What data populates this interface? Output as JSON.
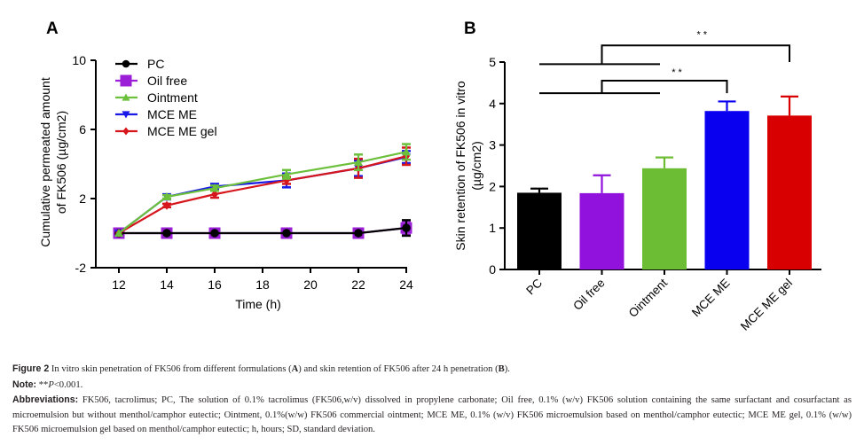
{
  "chart_data": [
    {
      "panel": "A",
      "type": "line",
      "title": "",
      "xlabel": "Time (h)",
      "ylabel_line1": "Cumulative permeated amount",
      "ylabel_line2": "of FK506 (µg/cm2)",
      "xlim": [
        12,
        24
      ],
      "ylim": [
        -2,
        10
      ],
      "xticks": [
        12,
        14,
        16,
        18,
        20,
        22,
        24
      ],
      "yticks": [
        -2,
        2,
        6,
        10
      ],
      "grid": false,
      "legend_position": "top-left",
      "x": [
        12,
        14,
        16,
        19,
        22,
        24
      ],
      "series": [
        {
          "name": "PC",
          "color": "#000000",
          "marker": "circle",
          "values": [
            0,
            0,
            0,
            0,
            0,
            0.3
          ],
          "err": [
            0,
            0,
            0,
            0,
            0,
            0.45
          ]
        },
        {
          "name": "Oil free",
          "color": "#9b1fd6",
          "marker": "square",
          "values": [
            0,
            0,
            0,
            0,
            0,
            0.3
          ],
          "err": [
            0,
            0,
            0,
            0,
            0,
            0.4
          ]
        },
        {
          "name": "Ointment",
          "color": "#6cc03c",
          "marker": "triangle-up",
          "values": [
            0,
            2.1,
            2.6,
            3.4,
            4.1,
            4.7
          ],
          "err": [
            0,
            0.1,
            0.15,
            0.25,
            0.45,
            0.45
          ]
        },
        {
          "name": "MCE ME",
          "color": "#1a1ae6",
          "marker": "triangle-down",
          "values": [
            0,
            2.1,
            2.7,
            3.05,
            3.75,
            4.4
          ],
          "err": [
            0,
            0.15,
            0.15,
            0.4,
            0.45,
            0.35
          ]
        },
        {
          "name": "MCE ME gel",
          "color": "#d6161c",
          "marker": "diamond",
          "values": [
            0,
            1.6,
            2.25,
            3.05,
            3.75,
            4.45
          ],
          "err": [
            0,
            0.1,
            0.2,
            0.2,
            0.55,
            0.5
          ]
        }
      ]
    },
    {
      "panel": "B",
      "type": "bar",
      "title": "",
      "xlabel": "",
      "ylabel_line1": "Skin retention of FK506 in vitro",
      "ylabel_line2": "(µg/cm2)",
      "ylim": [
        0,
        5
      ],
      "yticks": [
        0,
        1,
        2,
        3,
        4,
        5
      ],
      "grid": false,
      "categories": [
        "PC",
        "Oil free",
        "Ointment",
        "MCE ME",
        "MCE ME gel"
      ],
      "values": [
        1.85,
        1.84,
        2.44,
        3.82,
        3.71
      ],
      "err": [
        0.1,
        0.43,
        0.26,
        0.23,
        0.46
      ],
      "colors": [
        "#000000",
        "#9112dd",
        "#6dbd34",
        "#0a00f0",
        "#d80000"
      ],
      "significance": [
        {
          "label": "* *",
          "from": [
            "PC",
            "Oil free",
            "Ointment"
          ],
          "to": "MCE ME"
        },
        {
          "label": "* *",
          "from": [
            "PC",
            "Oil free",
            "Ointment"
          ],
          "to": "MCE ME gel"
        }
      ]
    }
  ],
  "panel_labels": {
    "a": "A",
    "b": "B"
  },
  "caption": {
    "figure_label": "Figure 2",
    "figure_text_1": " In vitro skin penetration of FK506 from different formulations (",
    "figure_bold_a": "A",
    "figure_text_2": ") and skin retention of FK506 after 24 h penetration (",
    "figure_bold_b": "B",
    "figure_text_3": ").",
    "note_label": "Note:",
    "note_stars": " **",
    "note_p": "P",
    "note_text": "<0.001.",
    "abbrev_label": "Abbreviations:",
    "abbrev_text": " FK506, tacrolimus; PC, The solution of 0.1% tacrolimus (FK506,w/v) dissolved in propylene carbonate; Oil free, 0.1% (w/v) FK506 solution containing the same surfactant and cosurfactant as microemulsion but without menthol/camphor eutectic; Ointment, 0.1%(w/w) FK506 commercial ointment; MCE ME, 0.1% (w/v) FK506 microemulsion based on menthol/camphor eutectic; MCE ME gel, 0.1% (w/w) FK506 microemulsion gel based on menthol/camphor eutectic; h, hours; SD, standard deviation."
  }
}
